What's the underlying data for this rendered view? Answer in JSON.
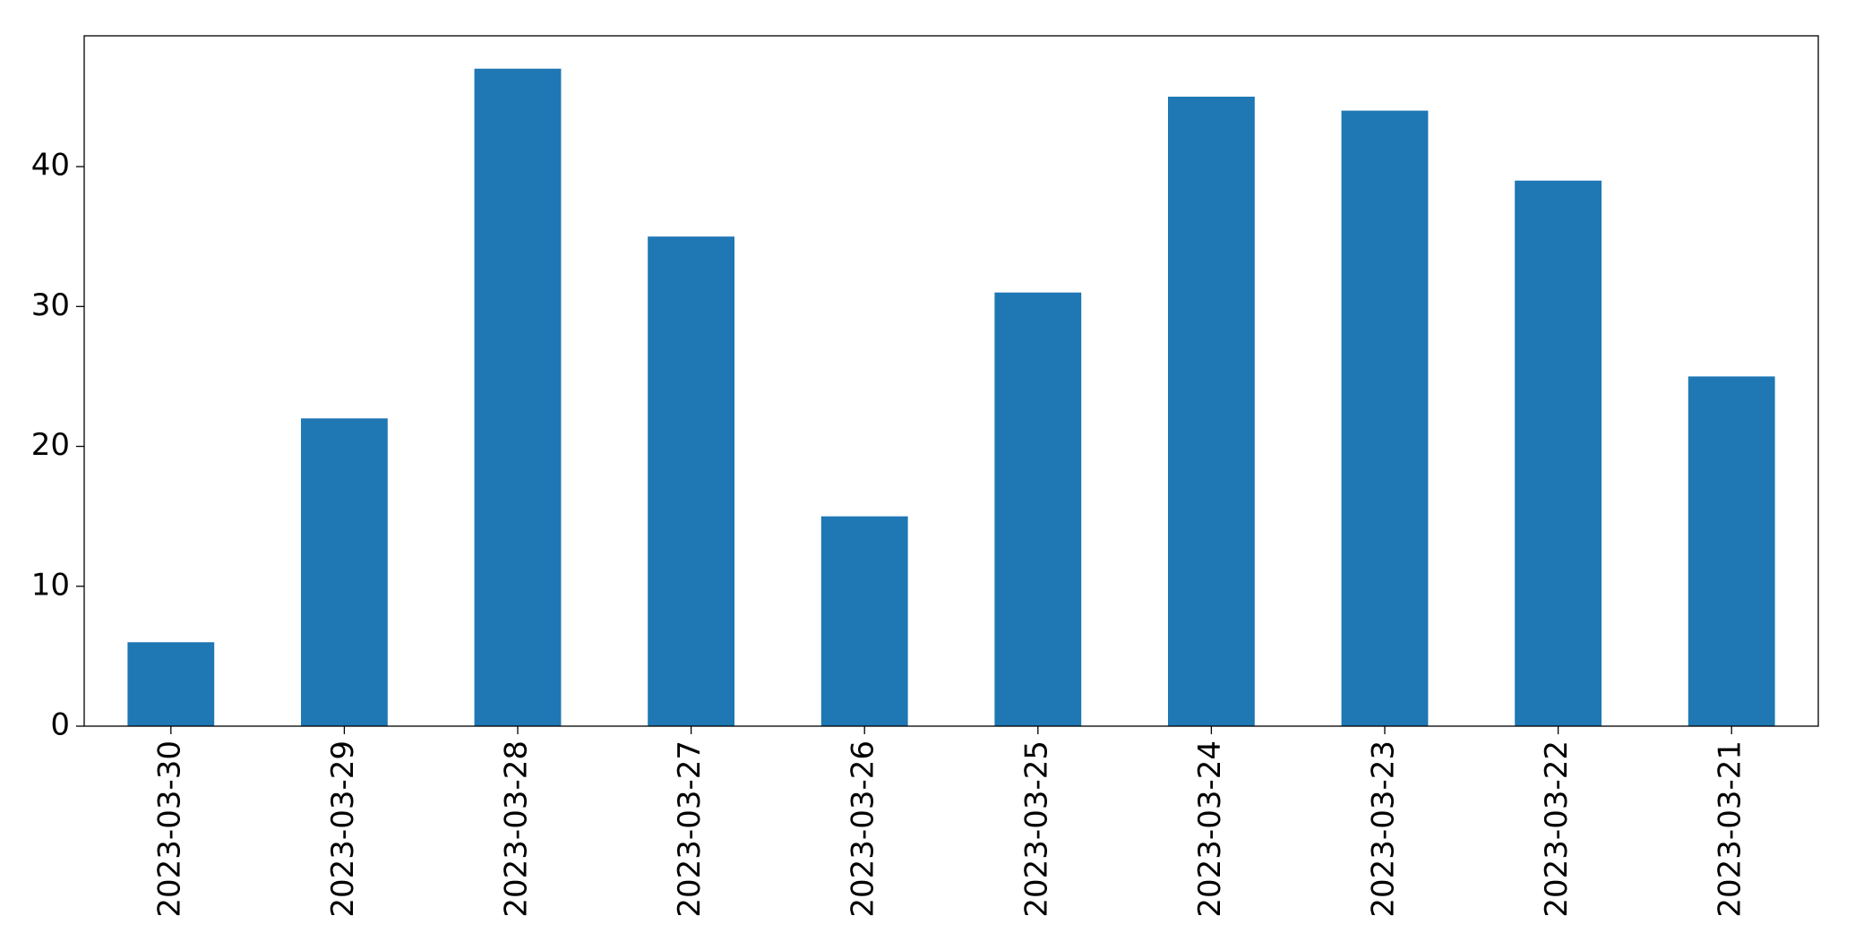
{
  "chart_data": {
    "type": "bar",
    "categories": [
      "2023-03-30",
      "2023-03-29",
      "2023-03-28",
      "2023-03-27",
      "2023-03-26",
      "2023-03-25",
      "2023-03-24",
      "2023-03-23",
      "2023-03-22",
      "2023-03-21"
    ],
    "values": [
      6,
      22,
      47,
      35,
      15,
      31,
      45,
      44,
      39,
      25
    ],
    "color": "#1f77b4",
    "ylim": [
      0,
      49.35
    ],
    "yticks": [
      0,
      10,
      20,
      30,
      40
    ],
    "grid": false
  }
}
